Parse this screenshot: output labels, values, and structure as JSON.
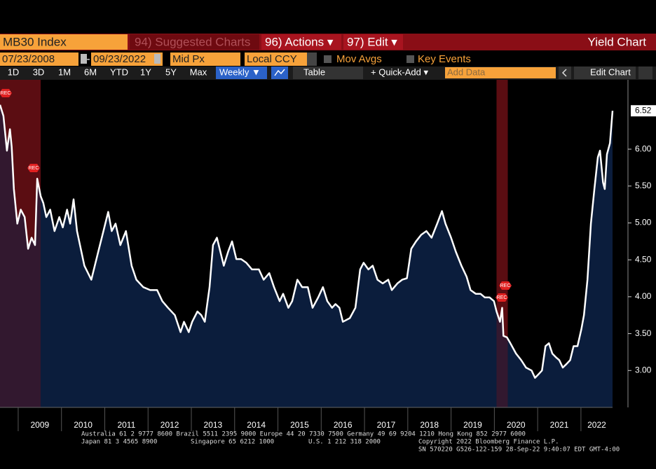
{
  "toolbar": {
    "security": "MB30 Index",
    "suggested": "94) Suggested Charts",
    "actions": "96) Actions ▾",
    "edit": "97) Edit ▾",
    "chart_name": "Yield Chart",
    "start_date": "07/23/2008",
    "dash": "-",
    "end_date": "09/23/2022",
    "price": "Mid Px",
    "currency": "Local CCY",
    "mov_avgs": "Mov Avgs",
    "key_events": "Key Events",
    "ranges": [
      "1D",
      "3D",
      "1M",
      "6M",
      "YTD",
      "1Y",
      "5Y",
      "Max"
    ],
    "frequency": "Weekly ▼",
    "table": "Table",
    "quick_add": "+ Quick-Add ▾",
    "add_data": "Add Data",
    "edit_chart": "Edit Chart"
  },
  "chart_data": {
    "type": "area",
    "color": "#ffffff",
    "fill": "#0b1d3c",
    "x": [
      2008.58,
      2008.66,
      2008.74,
      2008.81,
      2008.85,
      2008.9,
      2008.98,
      2009.06,
      2009.15,
      2009.23,
      2009.31,
      2009.39,
      2009.44,
      2009.52,
      2009.58,
      2009.65,
      2009.74,
      2009.84,
      2009.95,
      2010.03,
      2010.13,
      2010.2,
      2010.28,
      2010.36,
      2010.53,
      2010.69,
      2010.85,
      2010.97,
      2011.08,
      2011.16,
      2011.25,
      2011.36,
      2011.49,
      2011.62,
      2011.73,
      2011.89,
      2012.05,
      2012.21,
      2012.33,
      2012.46,
      2012.62,
      2012.75,
      2012.83,
      2012.94,
      2013.02,
      2013.14,
      2013.23,
      2013.31,
      2013.42,
      2013.5,
      2013.59,
      2013.67,
      2013.75,
      2013.85,
      2013.94,
      2014.04,
      2014.15,
      2014.27,
      2014.4,
      2014.56,
      2014.67,
      2014.8,
      2014.91,
      2015.04,
      2015.12,
      2015.24,
      2015.33,
      2015.45,
      2015.56,
      2015.69,
      2015.8,
      2015.93,
      2016.04,
      2016.14,
      2016.25,
      2016.33,
      2016.42,
      2016.5,
      2016.66,
      2016.79,
      2016.9,
      2016.98,
      2017.09,
      2017.19,
      2017.3,
      2017.42,
      2017.55,
      2017.63,
      2017.76,
      2017.87,
      2017.98,
      2018.08,
      2018.19,
      2018.31,
      2018.43,
      2018.55,
      2018.68,
      2018.79,
      2018.87,
      2019.0,
      2019.11,
      2019.24,
      2019.36,
      2019.45,
      2019.57,
      2019.68,
      2019.78,
      2019.89,
      2019.99,
      2020.05,
      2020.13,
      2020.18,
      2020.21,
      2020.29,
      2020.37,
      2020.5,
      2020.62,
      2020.73,
      2020.86,
      2020.94,
      2021.02,
      2021.1,
      2021.18,
      2021.26,
      2021.34,
      2021.42,
      2021.5,
      2021.58,
      2021.67,
      2021.75,
      2021.83,
      2021.92,
      2022.01,
      2022.07,
      2022.15,
      2022.23,
      2022.31,
      2022.39,
      2022.44,
      2022.51,
      2022.55,
      2022.6,
      2022.67,
      2022.73
    ],
    "values": [
      6.6,
      6.45,
      5.98,
      6.27,
      6.03,
      5.46,
      4.99,
      5.18,
      5.08,
      4.65,
      4.8,
      4.7,
      5.6,
      5.36,
      5.27,
      5.08,
      5.18,
      4.89,
      5.08,
      4.94,
      5.18,
      4.99,
      5.32,
      4.89,
      4.42,
      4.23,
      4.61,
      4.89,
      5.15,
      4.89,
      4.99,
      4.7,
      4.89,
      4.42,
      4.23,
      4.13,
      4.09,
      4.09,
      3.94,
      3.85,
      3.75,
      3.52,
      3.66,
      3.52,
      3.66,
      3.8,
      3.75,
      3.66,
      4.13,
      4.7,
      4.8,
      4.61,
      4.42,
      4.61,
      4.75,
      4.51,
      4.51,
      4.46,
      4.37,
      4.37,
      4.23,
      4.32,
      4.13,
      3.94,
      4.04,
      3.85,
      3.94,
      4.23,
      4.13,
      4.13,
      3.85,
      3.99,
      4.13,
      3.94,
      3.85,
      3.9,
      3.85,
      3.66,
      3.71,
      3.85,
      4.37,
      4.46,
      4.37,
      4.42,
      4.23,
      4.18,
      4.23,
      4.09,
      4.18,
      4.23,
      4.25,
      4.65,
      4.75,
      4.84,
      4.89,
      4.8,
      4.99,
      5.16,
      4.99,
      4.8,
      4.61,
      4.42,
      4.27,
      4.09,
      4.04,
      4.04,
      3.99,
      3.99,
      3.94,
      3.8,
      3.66,
      3.85,
      3.47,
      3.45,
      3.37,
      3.23,
      3.14,
      3.04,
      3.0,
      2.9,
      2.95,
      3.0,
      3.33,
      3.37,
      3.23,
      3.18,
      3.14,
      3.04,
      3.09,
      3.14,
      3.33,
      3.33,
      3.56,
      3.75,
      4.23,
      4.99,
      5.46,
      5.89,
      5.98,
      5.55,
      5.46,
      5.93,
      6.08,
      6.52
    ],
    "xlim": [
      2008.58,
      2022.73
    ],
    "xticks": [
      2009,
      2010,
      2011,
      2012,
      2013,
      2014,
      2015,
      2016,
      2017,
      2018,
      2019,
      2020,
      2021,
      2022
    ],
    "ylim": [
      2.5,
      6.94
    ],
    "yticks": [
      {
        "value": 3,
        "label": "3.00"
      },
      {
        "value": 3.5,
        "label": "3.50"
      },
      {
        "value": 4,
        "label": "4.00"
      },
      {
        "value": 4.5,
        "label": "4.50"
      },
      {
        "value": 5,
        "label": "5.00"
      },
      {
        "value": 5.5,
        "label": "5.50"
      },
      {
        "value": 6,
        "label": "6.00"
      }
    ],
    "recessions": [
      {
        "start": 2008.58,
        "end": 2009.52,
        "label": "REC"
      },
      {
        "start": 2020.05,
        "end": 2020.31,
        "label": "REC"
      }
    ]
  },
  "footer": [
    "Australia 61 2 9777 8600 Brazil 5511 2395 9000 Europe 44 20 7330 7500 Germany 49 69 9204 1210 Hong Kong 852 2977 6000",
    "Japan 81 3 4565 8900",
    "Singapore 65 6212 1000",
    "U.S. 1 212 318 2000",
    "Copyright 2022 Bloomberg Finance L.P.",
    "SN 570220 G526-122-159 28-Sep-22  9:40:07 EDT  GMT-4:00"
  ]
}
